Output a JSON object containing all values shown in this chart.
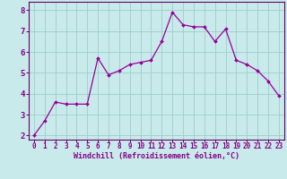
{
  "x": [
    0,
    1,
    2,
    3,
    4,
    5,
    6,
    7,
    8,
    9,
    10,
    11,
    12,
    13,
    14,
    15,
    16,
    17,
    18,
    19,
    20,
    21,
    22,
    23
  ],
  "y": [
    2.0,
    2.7,
    3.6,
    3.5,
    3.5,
    3.5,
    5.7,
    4.9,
    5.1,
    5.4,
    5.5,
    5.6,
    6.5,
    7.9,
    7.3,
    7.2,
    7.2,
    6.5,
    7.1,
    5.6,
    5.4,
    5.1,
    4.6,
    3.9
  ],
  "line_color": "#990099",
  "marker": "D",
  "marker_size": 2.0,
  "bg_color": "#c8eaea",
  "grid_color": "#a0cccc",
  "xlabel": "Windchill (Refroidissement éolien,°C)",
  "xlabel_color": "#880088",
  "tick_color": "#880088",
  "ylim": [
    1.8,
    8.4
  ],
  "yticks": [
    2,
    3,
    4,
    5,
    6,
    7,
    8
  ],
  "xticks": [
    0,
    1,
    2,
    3,
    4,
    5,
    6,
    7,
    8,
    9,
    10,
    11,
    12,
    13,
    14,
    15,
    16,
    17,
    18,
    19,
    20,
    21,
    22,
    23
  ],
  "spine_color": "#660066",
  "tick_fontsize": 5.5,
  "xlabel_fontsize": 6.0,
  "ytick_fontsize": 6.5
}
